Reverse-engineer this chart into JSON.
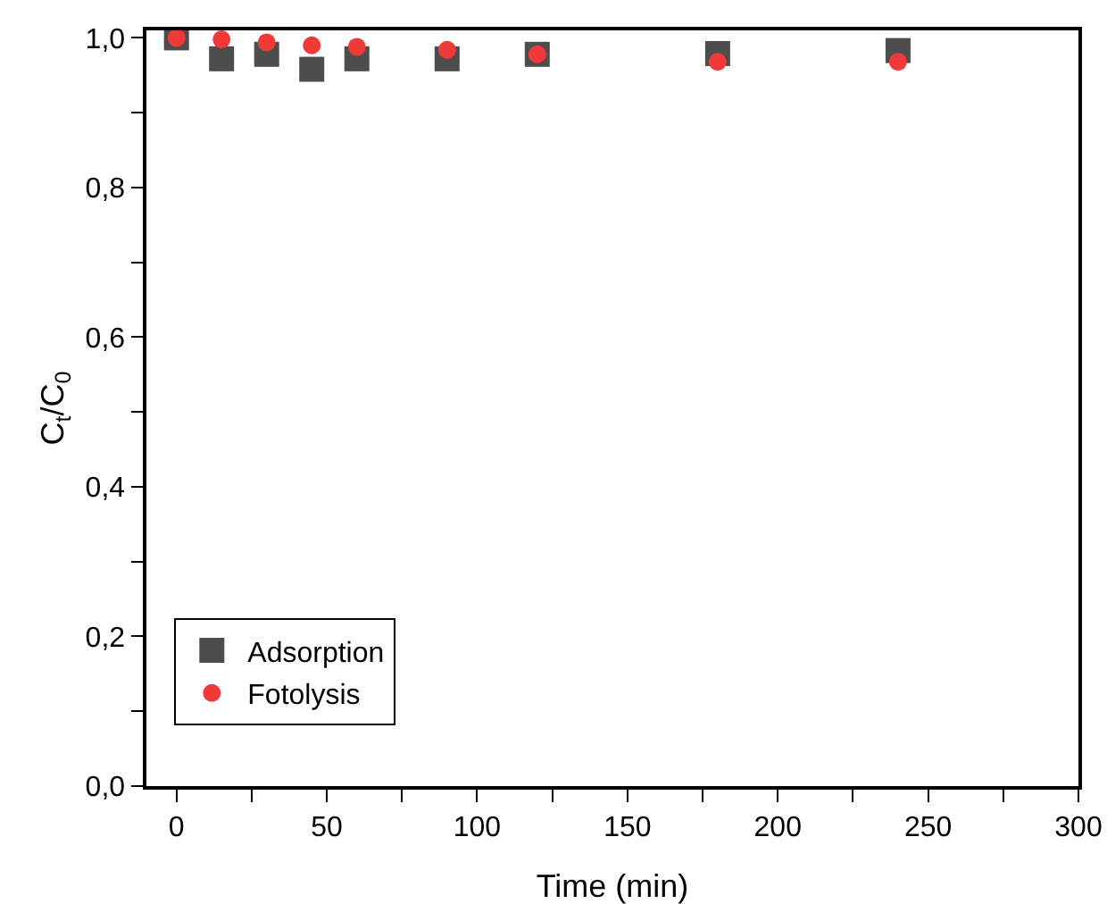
{
  "chart_data": {
    "type": "scatter",
    "xlabel": "Time (min)",
    "ylabel": "C$_{t}$/C$_{0}$",
    "x": [
      0,
      15,
      30,
      45,
      60,
      90,
      120,
      180,
      240
    ],
    "series": [
      {
        "name": "Adsorption",
        "color": "#4d4d4d",
        "marker": "square",
        "values": [
          1.0,
          0.972,
          0.978,
          0.958,
          0.972,
          0.972,
          0.978,
          0.979,
          0.983
        ]
      },
      {
        "name": "Fotolysis",
        "color": "#f03a3a",
        "marker": "circle",
        "values": [
          1.0,
          0.998,
          0.994,
          0.99,
          0.988,
          0.984,
          0.978,
          0.968,
          0.968
        ]
      }
    ],
    "xlim": [
      -10,
      300
    ],
    "ylim": [
      0,
      1.01
    ],
    "xticks": [
      0,
      {
        "value": 25,
        "label": null
      },
      50,
      {
        "value": 75,
        "label": null
      },
      100,
      {
        "value": 125,
        "label": null
      },
      150,
      {
        "value": 175,
        "label": null
      },
      200,
      {
        "value": 225,
        "label": null
      },
      250,
      {
        "value": 275,
        "label": null
      },
      300
    ],
    "yticks": [
      {
        "value": 0,
        "label": "0,0"
      },
      {
        "value": 0.1,
        "label": null
      },
      {
        "value": 0.2,
        "label": "0,2"
      },
      {
        "value": 0.3,
        "label": null
      },
      {
        "value": 0.4,
        "label": "0,4"
      },
      {
        "value": 0.5,
        "label": null
      },
      {
        "value": 0.6,
        "label": "0,6"
      },
      {
        "value": 0.7,
        "label": null
      },
      {
        "value": 0.8,
        "label": "0,8"
      },
      {
        "value": 0.9,
        "label": null
      },
      {
        "value": 1.0,
        "label": "1,0"
      }
    ],
    "grid": false,
    "legend": "bottom left"
  }
}
